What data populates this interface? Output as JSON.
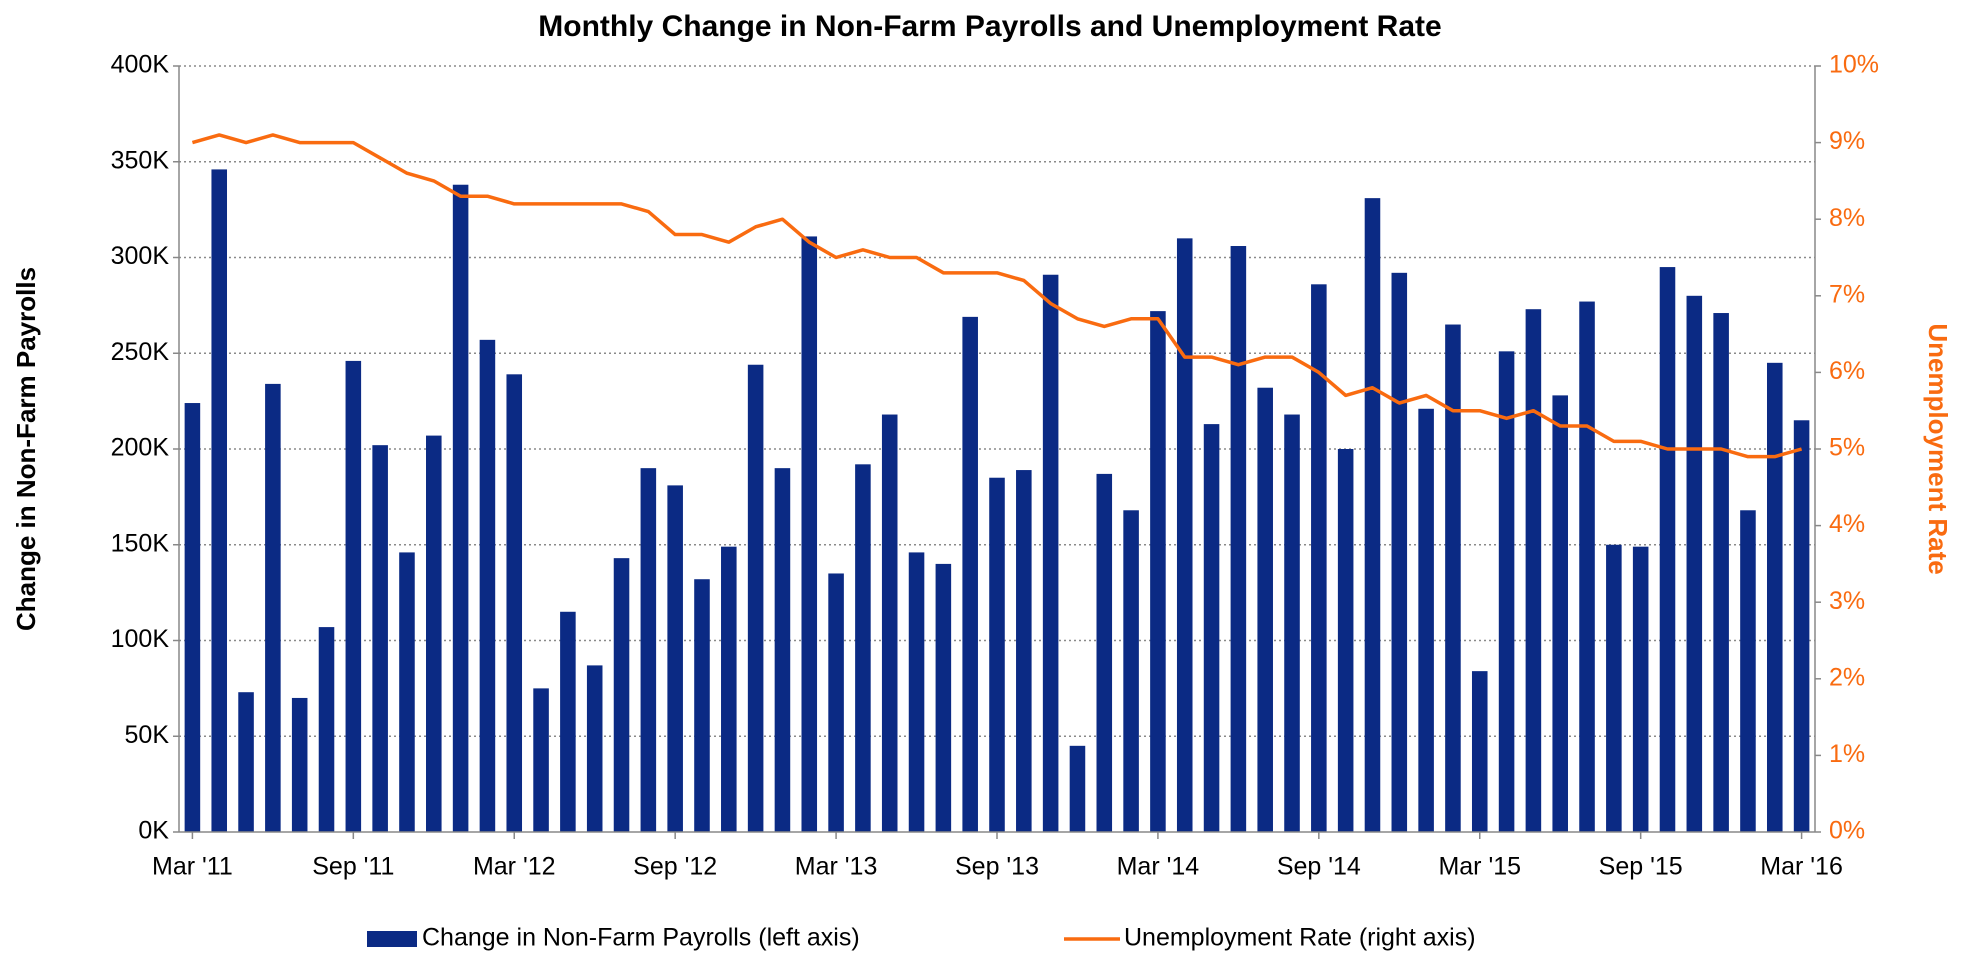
{
  "chart_data": {
    "type": "bar",
    "title": "Monthly Change in Non-Farm Payrolls and Unemployment Rate",
    "y_label": "Change in Non-Farm Payrolls",
    "y2_label": "Unemployment Rate",
    "categories": [
      "Mar '11",
      null,
      null,
      null,
      null,
      null,
      "Sep '11",
      null,
      null,
      null,
      null,
      null,
      "Mar '12",
      null,
      null,
      null,
      null,
      null,
      "Sep '12",
      null,
      null,
      null,
      null,
      null,
      "Mar '13",
      null,
      null,
      null,
      null,
      null,
      "Sep '13",
      null,
      null,
      null,
      null,
      null,
      "Mar '14",
      null,
      null,
      null,
      null,
      null,
      "Sep '14",
      null,
      null,
      null,
      null,
      null,
      "Mar '15",
      null,
      null,
      null,
      null,
      null,
      "Sep '15",
      null,
      null,
      null,
      null,
      null,
      "Mar '16"
    ],
    "series": [
      {
        "name": "Change in Non-Farm Payrolls (left axis)",
        "type": "bar",
        "color": "#0b2a84",
        "values": [
          224000,
          346000,
          73000,
          234000,
          70000,
          107000,
          246000,
          202000,
          146000,
          207000,
          338000,
          257000,
          239000,
          75000,
          115000,
          87000,
          143000,
          190000,
          181000,
          132000,
          149000,
          244000,
          190000,
          311000,
          135000,
          192000,
          218000,
          146000,
          140000,
          269000,
          185000,
          189000,
          291000,
          45000,
          187000,
          168000,
          272000,
          310000,
          213000,
          306000,
          232000,
          218000,
          286000,
          200000,
          331000,
          292000,
          221000,
          265000,
          84000,
          251000,
          273000,
          228000,
          277000,
          150000,
          149000,
          295000,
          280000,
          271000,
          168000,
          245000,
          215000
        ]
      },
      {
        "name": "Unemployment Rate (right axis)",
        "type": "line",
        "axis": "y2",
        "color": "#f96b10",
        "values": [
          9.0,
          9.1,
          9.0,
          9.1,
          9.0,
          9.0,
          9.0,
          8.8,
          8.6,
          8.5,
          8.3,
          8.3,
          8.2,
          8.2,
          8.2,
          8.2,
          8.2,
          8.1,
          7.8,
          7.8,
          7.7,
          7.9,
          8.0,
          7.7,
          7.5,
          7.6,
          7.5,
          7.5,
          7.3,
          7.3,
          7.3,
          7.2,
          6.9,
          6.7,
          6.6,
          6.7,
          6.7,
          6.2,
          6.2,
          6.1,
          6.2,
          6.2,
          6.0,
          5.7,
          5.8,
          5.6,
          5.7,
          5.5,
          5.5,
          5.4,
          5.5,
          5.3,
          5.3,
          5.1,
          5.1,
          5.0,
          5.0,
          5.0,
          4.9,
          4.9,
          5.0
        ]
      }
    ],
    "ylim": [
      0,
      400000
    ],
    "yticks": [
      {
        "value": 0,
        "label": "0K"
      },
      {
        "value": 50000,
        "label": "50K"
      },
      {
        "value": 100000,
        "label": "100K"
      },
      {
        "value": 150000,
        "label": "150K"
      },
      {
        "value": 200000,
        "label": "200K"
      },
      {
        "value": 250000,
        "label": "250K"
      },
      {
        "value": 300000,
        "label": "300K"
      },
      {
        "value": 350000,
        "label": "350K"
      },
      {
        "value": 400000,
        "label": "400K"
      }
    ],
    "y2lim": [
      0,
      10
    ],
    "y2ticks": [
      {
        "value": 0,
        "label": "0%"
      },
      {
        "value": 1,
        "label": "1%"
      },
      {
        "value": 2,
        "label": "2%"
      },
      {
        "value": 3,
        "label": "3%"
      },
      {
        "value": 4,
        "label": "4%"
      },
      {
        "value": 5,
        "label": "5%"
      },
      {
        "value": 6,
        "label": "6%"
      },
      {
        "value": 7,
        "label": "7%"
      },
      {
        "value": 8,
        "label": "8%"
      },
      {
        "value": 9,
        "label": "9%"
      },
      {
        "value": 10,
        "label": "10%"
      }
    ],
    "grid": true,
    "legend": "bottom"
  }
}
